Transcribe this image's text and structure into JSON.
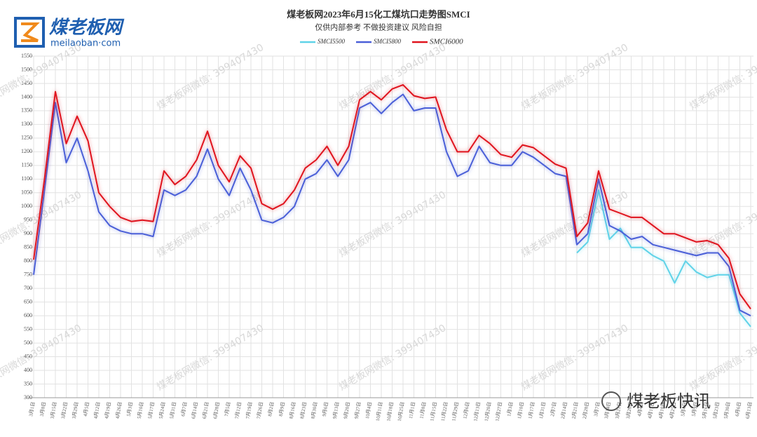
{
  "brand": {
    "name": "煤老板网",
    "site": "meilaoban·com"
  },
  "watermark": "煤老板网微信: 399407430",
  "footer_brand": "煤老板快讯",
  "chart_data": {
    "type": "line",
    "title": "煤老板网2023年6月15化工煤坑口走势图SMCI",
    "subtitle": "仅供内部参考 不做投资建议 风险自担",
    "categories": [
      "3月1日",
      "3月8日",
      "3月15日",
      "3月22日",
      "3月29日",
      "4月5日",
      "4月12日",
      "4月19日",
      "4月26日",
      "5月3日",
      "5月10日",
      "5月17日",
      "5月24日",
      "5月31日",
      "6月7日",
      "6月14日",
      "6月21日",
      "6月28日",
      "7月5日",
      "7月12日",
      "7月19日",
      "7月26日",
      "8月2日",
      "8月9日",
      "8月16日",
      "8月23日",
      "8月30日",
      "9月6日",
      "9月13日",
      "9月20日",
      "9月27日",
      "10月4日",
      "10月11日",
      "10月18日",
      "10月25日",
      "11月1日",
      "11月8日",
      "11月15日",
      "11月22日",
      "11月29日",
      "12月6日",
      "12月13日",
      "12月20日",
      "12月27日",
      "1月3日",
      "1月10日",
      "1月17日",
      "1月31日",
      "2月7日",
      "2月14日",
      "2月21日",
      "2月28日",
      "3月7日",
      "3月14日",
      "3月21日",
      "3月28日",
      "4月4日",
      "4月11日",
      "4月18日",
      "4月25日",
      "5月4日",
      "5月9日",
      "5月16日",
      "5月23日",
      "5月30日",
      "6月6日",
      "6月13日"
    ],
    "series": [
      {
        "name": "SMCI5500",
        "color": "#5fd3e8",
        "values": [
          null,
          null,
          null,
          null,
          null,
          null,
          null,
          null,
          null,
          null,
          null,
          null,
          null,
          null,
          null,
          null,
          null,
          null,
          null,
          null,
          null,
          null,
          null,
          null,
          null,
          null,
          null,
          null,
          null,
          null,
          null,
          null,
          null,
          null,
          null,
          null,
          null,
          null,
          null,
          null,
          null,
          null,
          null,
          null,
          null,
          null,
          null,
          null,
          null,
          null,
          830,
          870,
          1060,
          880,
          920,
          850,
          850,
          820,
          800,
          720,
          800,
          760,
          740,
          750,
          750,
          610,
          560
        ]
      },
      {
        "name": "SMCI5800",
        "color": "#4a5fd8",
        "values": [
          750,
          1060,
          1380,
          1160,
          1250,
          1130,
          980,
          930,
          910,
          900,
          900,
          890,
          1060,
          1040,
          1060,
          1110,
          1210,
          1100,
          1040,
          1140,
          1060,
          950,
          940,
          960,
          1000,
          1100,
          1120,
          1170,
          1110,
          1170,
          1360,
          1380,
          1340,
          1380,
          1410,
          1350,
          1360,
          1360,
          1200,
          1110,
          1130,
          1220,
          1160,
          1150,
          1150,
          1200,
          1180,
          1150,
          1120,
          1110,
          860,
          900,
          1100,
          930,
          910,
          880,
          890,
          860,
          850,
          840,
          830,
          820,
          830,
          830,
          780,
          620,
          600
        ]
      },
      {
        "name": "SMCI6000",
        "color": "#e0141e",
        "values": [
          805,
          1100,
          1420,
          1230,
          1330,
          1240,
          1050,
          1000,
          960,
          945,
          950,
          945,
          1130,
          1080,
          1110,
          1170,
          1275,
          1150,
          1090,
          1185,
          1140,
          1010,
          990,
          1010,
          1060,
          1140,
          1170,
          1220,
          1150,
          1220,
          1390,
          1420,
          1390,
          1430,
          1445,
          1405,
          1395,
          1400,
          1280,
          1200,
          1200,
          1260,
          1230,
          1190,
          1180,
          1225,
          1215,
          1185,
          1155,
          1140,
          890,
          940,
          1130,
          990,
          975,
          960,
          960,
          930,
          900,
          900,
          885,
          870,
          875,
          860,
          810,
          680,
          625
        ]
      }
    ],
    "ylim": [
      300,
      1550
    ],
    "yticks": [
      300,
      350,
      400,
      450,
      500,
      550,
      600,
      650,
      700,
      750,
      800,
      850,
      900,
      950,
      1000,
      1050,
      1100,
      1150,
      1200,
      1250,
      1300,
      1350,
      1400,
      1450,
      1500,
      1550
    ],
    "grid": true
  }
}
